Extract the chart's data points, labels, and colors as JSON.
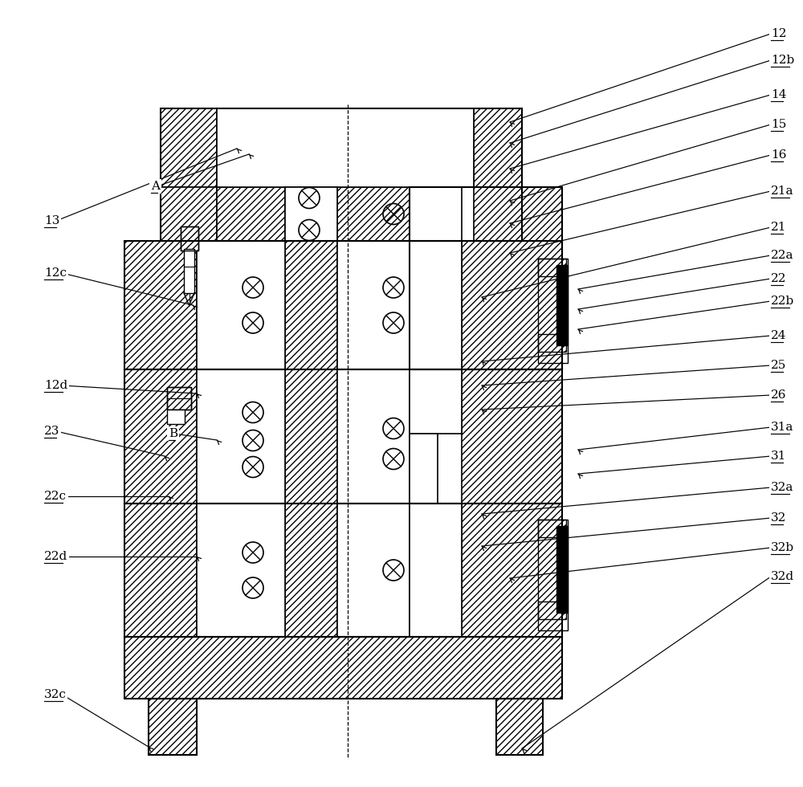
{
  "bg_color": "#ffffff",
  "lw": 1.2,
  "hatch": "////",
  "right_labels": [
    [
      "12",
      960,
      42,
      635,
      152
    ],
    [
      "12b",
      960,
      75,
      635,
      178
    ],
    [
      "14",
      960,
      118,
      635,
      210
    ],
    [
      "15",
      960,
      155,
      635,
      250
    ],
    [
      "16",
      960,
      193,
      635,
      278
    ],
    [
      "21a",
      960,
      238,
      635,
      315
    ],
    [
      "21",
      960,
      283,
      600,
      370
    ],
    [
      "22a",
      960,
      318,
      720,
      360
    ],
    [
      "22",
      960,
      347,
      720,
      385
    ],
    [
      "22b",
      960,
      375,
      720,
      410
    ],
    [
      "24",
      960,
      418,
      600,
      450
    ],
    [
      "25",
      960,
      455,
      600,
      480
    ],
    [
      "26",
      960,
      492,
      600,
      510
    ],
    [
      "31a",
      960,
      532,
      720,
      560
    ],
    [
      "31",
      960,
      568,
      720,
      590
    ],
    [
      "32a",
      960,
      607,
      600,
      640
    ],
    [
      "32",
      960,
      645,
      600,
      680
    ],
    [
      "32b",
      960,
      682,
      635,
      720
    ],
    [
      "32d",
      960,
      718,
      650,
      932
    ]
  ],
  "left_labels": [
    [
      "13",
      55,
      275,
      295,
      185
    ],
    [
      "A",
      188,
      232,
      310,
      192
    ],
    [
      "12c",
      55,
      340,
      240,
      380
    ],
    [
      "12d",
      55,
      480,
      245,
      490
    ],
    [
      "B",
      210,
      540,
      270,
      548
    ],
    [
      "23",
      55,
      537,
      205,
      568
    ],
    [
      "22c",
      55,
      618,
      210,
      618
    ],
    [
      "22d",
      55,
      693,
      245,
      693
    ],
    [
      "32c",
      55,
      865,
      185,
      930
    ]
  ]
}
